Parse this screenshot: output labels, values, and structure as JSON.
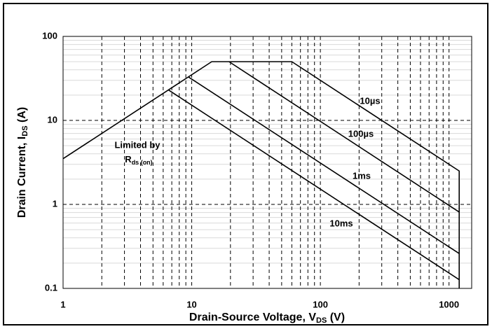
{
  "chart_data": {
    "type": "line",
    "x_label": {
      "main": "Drain-Source Voltage, V",
      "sub": "DS",
      "unit": " (V)"
    },
    "y_label": {
      "main": "Drain Current, I",
      "sub": "DS",
      "unit": " (A)"
    },
    "xscale": "log",
    "yscale": "log",
    "xlim": [
      1,
      1500
    ],
    "ylim": [
      0.1,
      100
    ],
    "xticks": [
      1,
      10,
      100,
      1000
    ],
    "yticks": [
      0.1,
      1,
      10,
      100
    ],
    "xminorticks": [
      2,
      3,
      4,
      5,
      6,
      7,
      8,
      9,
      20,
      30,
      40,
      50,
      60,
      70,
      80,
      90,
      200,
      300,
      400,
      500,
      600,
      700,
      800,
      900
    ],
    "yminorticks": [
      0.2,
      0.3,
      0.4,
      0.5,
      0.6,
      0.7,
      0.8,
      0.9,
      2,
      3,
      4,
      5,
      6,
      7,
      8,
      9,
      20,
      30,
      40,
      50,
      60,
      70,
      80,
      90
    ],
    "grid": true,
    "series": [
      {
        "name": "10µs",
        "color": "#000000",
        "x": [
          1,
          14.3,
          60,
          1200,
          1200
        ],
        "values": [
          3.5,
          50,
          50,
          2.5,
          0.1
        ]
      },
      {
        "name": "100µs",
        "color": "#000000",
        "x": [
          19.5,
          1200
        ],
        "values": [
          50,
          0.81
        ]
      },
      {
        "name": "1ms",
        "color": "#000000",
        "x": [
          9.4,
          1200
        ],
        "values": [
          33,
          0.26
        ]
      },
      {
        "name": "10ms",
        "color": "#000000",
        "x": [
          6.6,
          1200
        ],
        "values": [
          23,
          0.127
        ]
      }
    ],
    "rds_label": {
      "line1": "Limited by",
      "main": "R",
      "sub": "ds (on)"
    }
  }
}
